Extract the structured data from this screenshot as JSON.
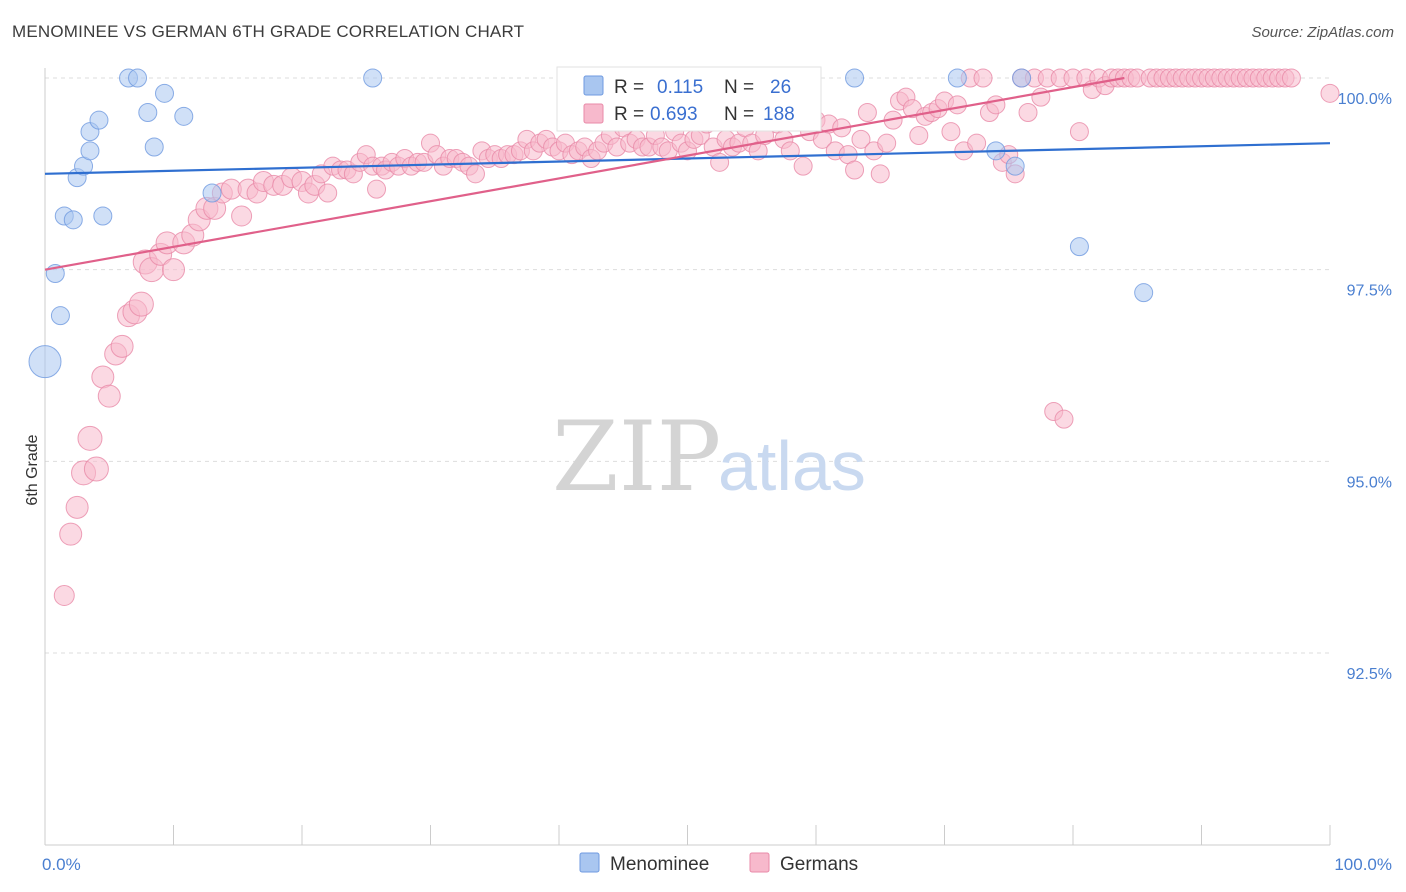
{
  "title": "MENOMINEE VS GERMAN 6TH GRADE CORRELATION CHART",
  "source": "Source: ZipAtlas.com",
  "watermark": {
    "zip": "ZIP",
    "atlas": "atlas"
  },
  "chart_data": {
    "type": "scatter",
    "xlabel": "",
    "ylabel": "6th Grade",
    "xlim": [
      0,
      100
    ],
    "ylim": [
      90.2,
      100.5
    ],
    "x_tick_labels": [
      "0.0%",
      "100.0%"
    ],
    "y_ticks": [
      92.5,
      95.0,
      97.5,
      100.0
    ],
    "y_tick_labels": [
      "92.5%",
      "95.0%",
      "97.5%",
      "100.0%"
    ],
    "grid": true,
    "legend": {
      "placement": "top-center",
      "rows": [
        {
          "r_label": "R =",
          "r_value": "0.115",
          "n_label": "N =",
          "n_value": "26"
        },
        {
          "r_label": "R =",
          "r_value": "0.693",
          "n_label": "N =",
          "n_value": "188"
        }
      ]
    },
    "series": [
      {
        "name": "Menominee",
        "color": "#a9c6f0",
        "stroke": "#6f9ae0",
        "trend_color": "#2f6fd0",
        "trend": {
          "x": [
            0,
            100
          ],
          "y": [
            98.75,
            99.15
          ]
        },
        "points": [
          [
            0,
            96.3,
            16
          ],
          [
            0.8,
            97.45,
            9
          ],
          [
            1.2,
            96.9,
            9
          ],
          [
            1.5,
            98.2,
            9
          ],
          [
            2.2,
            98.15,
            9
          ],
          [
            2.5,
            98.7,
            9
          ],
          [
            3.0,
            98.85,
            9
          ],
          [
            3.5,
            99.05,
            9
          ],
          [
            3.5,
            99.3,
            9
          ],
          [
            4.2,
            99.45,
            9
          ],
          [
            4.5,
            98.2,
            9
          ],
          [
            6.5,
            100.0,
            9
          ],
          [
            7.2,
            100.0,
            9
          ],
          [
            8.0,
            99.55,
            9
          ],
          [
            8.5,
            99.1,
            9
          ],
          [
            9.3,
            99.8,
            9
          ],
          [
            10.8,
            99.5,
            9
          ],
          [
            13.0,
            98.5,
            9
          ],
          [
            25.5,
            100.0,
            9
          ],
          [
            63.0,
            100.0,
            9
          ],
          [
            71.0,
            100.0,
            9
          ],
          [
            74.0,
            99.05,
            9
          ],
          [
            75.5,
            98.85,
            9
          ],
          [
            76.0,
            100.0,
            9
          ],
          [
            80.5,
            97.8,
            9
          ],
          [
            85.5,
            97.2,
            9
          ]
        ]
      },
      {
        "name": "Germans",
        "color": "#f7b9cc",
        "stroke": "#e98aa8",
        "trend_color": "#e0608a",
        "trend": {
          "x": [
            0,
            84
          ],
          "y": [
            97.5,
            100.0
          ]
        },
        "points": [
          [
            1.5,
            93.25,
            10
          ],
          [
            2.0,
            94.05,
            11
          ],
          [
            2.5,
            94.4,
            11
          ],
          [
            3.0,
            94.85,
            12
          ],
          [
            3.5,
            95.3,
            12
          ],
          [
            4.0,
            94.9,
            12
          ],
          [
            4.5,
            96.1,
            11
          ],
          [
            5.0,
            95.85,
            11
          ],
          [
            5.5,
            96.4,
            11
          ],
          [
            6.0,
            96.5,
            11
          ],
          [
            6.5,
            96.9,
            11
          ],
          [
            7.0,
            96.95,
            12
          ],
          [
            7.5,
            97.05,
            12
          ],
          [
            7.8,
            97.6,
            12
          ],
          [
            8.3,
            97.5,
            12
          ],
          [
            9.0,
            97.7,
            11
          ],
          [
            9.5,
            97.85,
            11
          ],
          [
            10.0,
            97.5,
            11
          ],
          [
            10.8,
            97.85,
            11
          ],
          [
            11.5,
            97.95,
            11
          ],
          [
            12.0,
            98.15,
            11
          ],
          [
            12.6,
            98.3,
            11
          ],
          [
            13.2,
            98.3,
            11
          ],
          [
            13.8,
            98.5,
            10
          ],
          [
            14.5,
            98.55,
            10
          ],
          [
            15.3,
            98.2,
            10
          ],
          [
            15.8,
            98.55,
            10
          ],
          [
            16.5,
            98.5,
            10
          ],
          [
            17.0,
            98.65,
            10
          ],
          [
            17.8,
            98.6,
            10
          ],
          [
            18.5,
            98.6,
            10
          ],
          [
            19.2,
            98.7,
            10
          ],
          [
            20.0,
            98.65,
            10
          ],
          [
            20.5,
            98.5,
            10
          ],
          [
            21.0,
            98.6,
            10
          ],
          [
            21.5,
            98.75,
            9
          ],
          [
            22.0,
            98.5,
            9
          ],
          [
            22.4,
            98.85,
            9
          ],
          [
            23.0,
            98.8,
            9
          ],
          [
            23.5,
            98.8,
            9
          ],
          [
            24.0,
            98.75,
            9
          ],
          [
            24.5,
            98.9,
            9
          ],
          [
            25.0,
            99.0,
            9
          ],
          [
            25.5,
            98.85,
            9
          ],
          [
            25.8,
            98.55,
            9
          ],
          [
            26.2,
            98.85,
            9
          ],
          [
            26.5,
            98.8,
            9
          ],
          [
            27.0,
            98.9,
            9
          ],
          [
            27.5,
            98.85,
            9
          ],
          [
            28.0,
            98.95,
            9
          ],
          [
            28.5,
            98.85,
            9
          ],
          [
            29.0,
            98.9,
            9
          ],
          [
            29.5,
            98.9,
            9
          ],
          [
            30.0,
            99.15,
            9
          ],
          [
            30.5,
            99.0,
            9
          ],
          [
            31.0,
            98.85,
            9
          ],
          [
            31.5,
            98.95,
            9
          ],
          [
            32.0,
            98.95,
            9
          ],
          [
            32.5,
            98.9,
            9
          ],
          [
            33.0,
            98.85,
            9
          ],
          [
            33.5,
            98.75,
            9
          ],
          [
            34.0,
            99.05,
            9
          ],
          [
            34.5,
            98.95,
            9
          ],
          [
            35.0,
            99.0,
            9
          ],
          [
            35.5,
            98.95,
            9
          ],
          [
            36.0,
            99.0,
            9
          ],
          [
            36.5,
            99.0,
            9
          ],
          [
            37.0,
            99.05,
            9
          ],
          [
            37.5,
            99.2,
            9
          ],
          [
            38.0,
            99.05,
            9
          ],
          [
            38.5,
            99.15,
            9
          ],
          [
            39.0,
            99.2,
            9
          ],
          [
            39.5,
            99.1,
            9
          ],
          [
            40.0,
            99.05,
            9
          ],
          [
            40.5,
            99.15,
            9
          ],
          [
            41.0,
            99.0,
            9
          ],
          [
            41.5,
            99.05,
            9
          ],
          [
            42.0,
            99.1,
            9
          ],
          [
            42.5,
            98.95,
            9
          ],
          [
            43.0,
            99.05,
            9
          ],
          [
            43.5,
            99.15,
            9
          ],
          [
            44.0,
            99.25,
            9
          ],
          [
            44.5,
            99.1,
            9
          ],
          [
            45.0,
            99.35,
            9
          ],
          [
            45.5,
            99.15,
            9
          ],
          [
            46.0,
            99.2,
            9
          ],
          [
            46.5,
            99.1,
            9
          ],
          [
            47.0,
            99.1,
            9
          ],
          [
            47.5,
            99.25,
            9
          ],
          [
            48.0,
            99.1,
            9
          ],
          [
            48.5,
            99.05,
            9
          ],
          [
            49.0,
            99.3,
            9
          ],
          [
            49.5,
            99.15,
            9
          ],
          [
            50.0,
            99.05,
            9
          ],
          [
            50.5,
            99.2,
            9
          ],
          [
            51.0,
            99.25,
            9
          ],
          [
            51.5,
            99.4,
            9
          ],
          [
            52.0,
            99.1,
            9
          ],
          [
            52.5,
            98.9,
            9
          ],
          [
            53.0,
            99.2,
            9
          ],
          [
            53.5,
            99.1,
            9
          ],
          [
            54.0,
            99.15,
            9
          ],
          [
            54.5,
            99.35,
            9
          ],
          [
            55.0,
            99.15,
            9
          ],
          [
            55.5,
            99.05,
            9
          ],
          [
            56.0,
            99.25,
            9
          ],
          [
            56.5,
            99.6,
            9
          ],
          [
            57.0,
            99.4,
            9
          ],
          [
            57.5,
            99.2,
            9
          ],
          [
            58.0,
            99.05,
            9
          ],
          [
            58.5,
            99.45,
            9
          ],
          [
            59.0,
            98.85,
            9
          ],
          [
            59.5,
            99.3,
            9
          ],
          [
            60.0,
            99.45,
            9
          ],
          [
            60.5,
            99.2,
            9
          ],
          [
            61.0,
            99.4,
            9
          ],
          [
            61.5,
            99.05,
            9
          ],
          [
            62.0,
            99.35,
            9
          ],
          [
            62.5,
            99.0,
            9
          ],
          [
            63.0,
            98.8,
            9
          ],
          [
            63.5,
            99.2,
            9
          ],
          [
            64.0,
            99.55,
            9
          ],
          [
            64.5,
            99.05,
            9
          ],
          [
            65.0,
            98.75,
            9
          ],
          [
            65.5,
            99.15,
            9
          ],
          [
            66.0,
            99.45,
            9
          ],
          [
            66.5,
            99.7,
            9
          ],
          [
            67.0,
            99.75,
            9
          ],
          [
            67.5,
            99.6,
            9
          ],
          [
            68.0,
            99.25,
            9
          ],
          [
            68.5,
            99.5,
            9
          ],
          [
            69.0,
            99.55,
            9
          ],
          [
            69.5,
            99.6,
            9
          ],
          [
            70.0,
            99.7,
            9
          ],
          [
            70.5,
            99.3,
            9
          ],
          [
            71.0,
            99.65,
            9
          ],
          [
            71.5,
            99.05,
            9
          ],
          [
            72.0,
            100.0,
            9
          ],
          [
            72.5,
            99.15,
            9
          ],
          [
            73.0,
            100.0,
            9
          ],
          [
            73.5,
            99.55,
            9
          ],
          [
            74.0,
            99.65,
            9
          ],
          [
            74.5,
            98.9,
            9
          ],
          [
            75.0,
            99.0,
            9
          ],
          [
            75.5,
            98.75,
            9
          ],
          [
            76.0,
            100.0,
            9
          ],
          [
            76.5,
            99.55,
            9
          ],
          [
            77.0,
            100.0,
            9
          ],
          [
            77.5,
            99.75,
            9
          ],
          [
            78.0,
            100.0,
            9
          ],
          [
            78.5,
            95.65,
            9
          ],
          [
            79.0,
            100.0,
            9
          ],
          [
            79.3,
            95.55,
            9
          ],
          [
            80.0,
            100.0,
            9
          ],
          [
            80.5,
            99.3,
            9
          ],
          [
            81.0,
            100.0,
            9
          ],
          [
            81.5,
            99.85,
            9
          ],
          [
            82.0,
            100.0,
            9
          ],
          [
            82.5,
            99.9,
            9
          ],
          [
            83.0,
            100.0,
            9
          ],
          [
            83.5,
            100.0,
            9
          ],
          [
            84.0,
            100.0,
            9
          ],
          [
            84.5,
            100.0,
            9
          ],
          [
            85.0,
            100.0,
            9
          ],
          [
            86.0,
            100.0,
            9
          ],
          [
            86.5,
            100.0,
            9
          ],
          [
            87.0,
            100.0,
            9
          ],
          [
            87.5,
            100.0,
            9
          ],
          [
            88.0,
            100.0,
            9
          ],
          [
            88.5,
            100.0,
            9
          ],
          [
            89.0,
            100.0,
            9
          ],
          [
            89.5,
            100.0,
            9
          ],
          [
            90.0,
            100.0,
            9
          ],
          [
            90.5,
            100.0,
            9
          ],
          [
            91.0,
            100.0,
            9
          ],
          [
            91.5,
            100.0,
            9
          ],
          [
            92.0,
            100.0,
            9
          ],
          [
            92.5,
            100.0,
            9
          ],
          [
            93.0,
            100.0,
            9
          ],
          [
            93.5,
            100.0,
            9
          ],
          [
            94.0,
            100.0,
            9
          ],
          [
            94.5,
            100.0,
            9
          ],
          [
            95.0,
            100.0,
            9
          ],
          [
            95.5,
            100.0,
            9
          ],
          [
            96.0,
            100.0,
            9
          ],
          [
            96.5,
            100.0,
            9
          ],
          [
            97.0,
            100.0,
            9
          ],
          [
            100.0,
            99.8,
            9
          ]
        ]
      }
    ]
  }
}
